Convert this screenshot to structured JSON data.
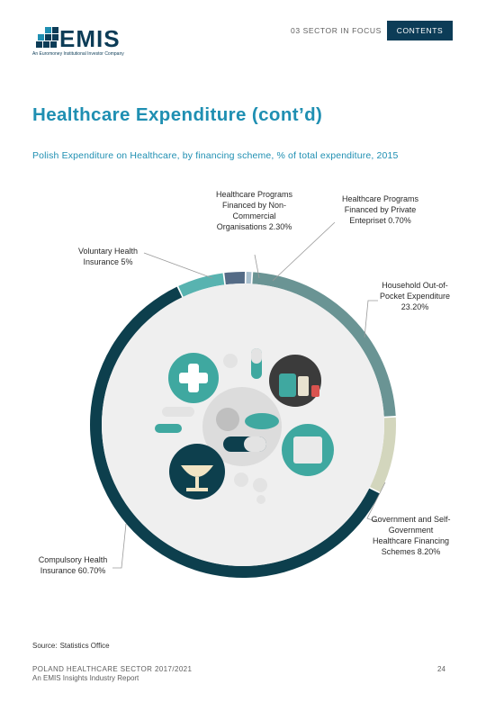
{
  "header": {
    "logo_text": "EMIS",
    "logo_tagline": "An Euromoney Institutional Investor Company",
    "section_label": "03 SECTOR IN FOCUS",
    "contents_label": "CONTENTS"
  },
  "page_title": "Healthcare Expenditure (cont’d)",
  "colors": {
    "brand_navy": "#0c3c57",
    "title_blue": "#1f8fb2"
  },
  "chart_data": {
    "type": "pie",
    "variant": "donut",
    "title": "Polish Expenditure on Healthcare, by financing scheme, % of total expenditure, 2015",
    "slices": [
      {
        "label": "Healthcare Programs Financed by Non-Commercial Organisations 2.30%",
        "value": 2.3,
        "color": "#546b86"
      },
      {
        "label": "Healthcare Programs Financed by Private Entepriset 0.70%",
        "value": 0.7,
        "color": "#a9bfce"
      },
      {
        "label": "Household Out-of-Pocket Expenditure 23.20%",
        "value": 23.2,
        "color": "#6a9494"
      },
      {
        "label": "Government and Self-Government Healthcare Financing Schemes 8.20%",
        "value": 8.2,
        "color": "#d3d6bd"
      },
      {
        "label": "Compulsory Health Insurance 60.70%",
        "value": 60.7,
        "color": "#0d3f4d"
      },
      {
        "label": "Voluntary Health Insurance 5%",
        "value": 5.0,
        "color": "#58b3b0"
      }
    ]
  },
  "labels": {
    "non_commercial": "Healthcare Programs Financed by Non-Commercial Organisations 2.30%",
    "private": "Healthcare Programs Financed by Private Entepriset 0.70%",
    "voluntary": "Voluntary Health Insurance 5%",
    "household": "Household Out-of-Pocket Expenditure 23.20%",
    "government": "Government and Self-Government Healthcare Financing Schemes 8.20%",
    "compulsory": "Compulsory Health Insurance 60.70%"
  },
  "source": {
    "label": "Source:",
    "value": "Statistics Office"
  },
  "footer": {
    "line1": "POLAND HEALTHCARE SECTOR 2017/2021",
    "line2": "An EMIS Insights Industry Report",
    "page_number": "24"
  }
}
